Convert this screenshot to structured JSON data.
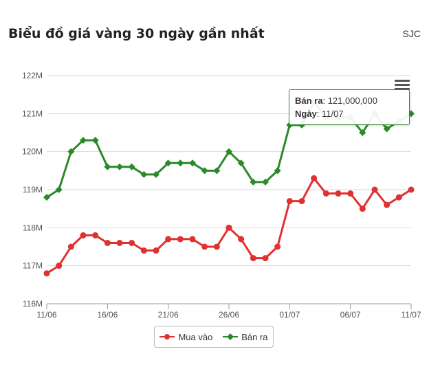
{
  "header": {
    "title": "Biểu đồ giá vàng 30 ngày gần nhất",
    "source": "SJC"
  },
  "tooltip": {
    "series_label": "Bán ra",
    "value_text": "121,000,000",
    "date_label": "Ngày",
    "date_value": "11/07"
  },
  "colors": {
    "mua_vao": "#e03030",
    "ban_ra": "#2a8a2a",
    "grid": "#d8d8d8"
  },
  "menu_icon": "hamburger-menu-icon",
  "chart_data": {
    "type": "line",
    "title": "Biểu đồ giá vàng 30 ngày gần nhất",
    "xlabel": "",
    "ylabel": "",
    "ylim": [
      116,
      122
    ],
    "y_unit": "M",
    "y_ticks": [
      "116M",
      "117M",
      "118M",
      "119M",
      "120M",
      "121M",
      "122M"
    ],
    "x": [
      "11/06",
      "12/06",
      "13/06",
      "14/06",
      "15/06",
      "16/06",
      "17/06",
      "18/06",
      "19/06",
      "20/06",
      "21/06",
      "22/06",
      "23/06",
      "24/06",
      "25/06",
      "26/06",
      "27/06",
      "28/06",
      "29/06",
      "30/06",
      "01/07",
      "02/07",
      "03/07",
      "04/07",
      "05/07",
      "06/07",
      "07/07",
      "08/07",
      "09/07",
      "10/07",
      "11/07"
    ],
    "x_tick_labels": [
      "11/06",
      "16/06",
      "21/06",
      "26/06",
      "01/07",
      "06/07",
      "11/07"
    ],
    "grid": true,
    "legend_position": "bottom-center",
    "series": [
      {
        "name": "Mua vào",
        "color": "#e03030",
        "marker": "circle",
        "values": [
          116.8,
          117.0,
          117.5,
          117.8,
          117.8,
          117.6,
          117.6,
          117.6,
          117.4,
          117.4,
          117.7,
          117.7,
          117.7,
          117.5,
          117.5,
          118.0,
          117.7,
          117.2,
          117.2,
          117.5,
          118.7,
          118.7,
          119.3,
          118.9,
          118.9,
          118.9,
          118.5,
          119.0,
          118.6,
          118.8,
          119.0
        ]
      },
      {
        "name": "Bán ra",
        "color": "#2a8a2a",
        "marker": "diamond",
        "values": [
          118.8,
          119.0,
          120.0,
          120.3,
          120.3,
          119.6,
          119.6,
          119.6,
          119.4,
          119.4,
          119.7,
          119.7,
          119.7,
          119.5,
          119.5,
          120.0,
          119.7,
          119.2,
          119.2,
          119.5,
          120.7,
          120.7,
          121.3,
          120.9,
          120.9,
          120.9,
          120.5,
          121.0,
          120.6,
          120.8,
          121.0
        ]
      }
    ]
  }
}
